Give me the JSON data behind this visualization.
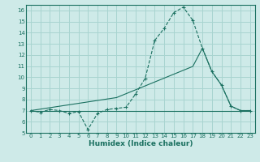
{
  "xlabel": "Humidex (Indice chaleur)",
  "x_values": [
    0,
    1,
    2,
    3,
    4,
    5,
    6,
    7,
    8,
    9,
    10,
    11,
    12,
    13,
    14,
    15,
    16,
    17,
    18,
    19,
    20,
    21,
    22,
    23
  ],
  "line1_y": [
    7.0,
    6.85,
    7.1,
    7.0,
    6.75,
    6.9,
    5.3,
    6.75,
    7.1,
    7.2,
    7.3,
    8.5,
    9.9,
    13.3,
    14.4,
    15.8,
    16.3,
    15.1,
    12.6,
    10.5,
    9.3,
    7.4,
    7.0,
    7.0
  ],
  "line2_y": [
    7.0,
    7.0,
    7.0,
    7.0,
    7.0,
    7.0,
    7.0,
    7.0,
    7.0,
    7.0,
    7.0,
    7.0,
    7.0,
    7.0,
    7.0,
    7.0,
    7.0,
    7.0,
    7.0,
    7.0,
    7.0,
    7.0,
    7.0,
    7.0
  ],
  "line3_y": [
    7.0,
    7.13,
    7.26,
    7.39,
    7.52,
    7.65,
    7.78,
    7.91,
    8.04,
    8.17,
    8.52,
    8.87,
    9.22,
    9.57,
    9.92,
    10.27,
    10.62,
    10.97,
    12.6,
    10.5,
    9.3,
    7.4,
    7.0,
    7.0
  ],
  "line_color": "#1a7060",
  "bg_color": "#ceeae8",
  "grid_color": "#a8d4d0",
  "ylim": [
    5,
    16.5
  ],
  "xlim": [
    -0.5,
    23.5
  ],
  "yticks": [
    5,
    6,
    7,
    8,
    9,
    10,
    11,
    12,
    13,
    14,
    15,
    16
  ],
  "xticks": [
    0,
    1,
    2,
    3,
    4,
    5,
    6,
    7,
    8,
    9,
    10,
    11,
    12,
    13,
    14,
    15,
    16,
    17,
    18,
    19,
    20,
    21,
    22,
    23
  ]
}
